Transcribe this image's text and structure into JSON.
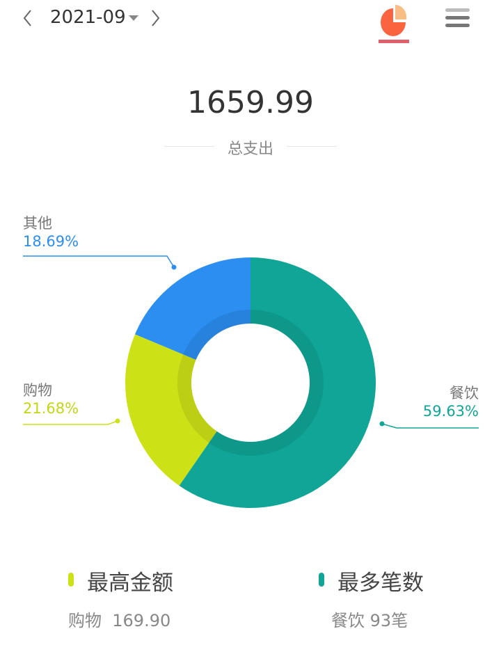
{
  "header": {
    "month": "2021-09",
    "prev_icon": "chevron-left-icon",
    "next_icon": "chevron-right-icon",
    "dropdown_icon": "caret-down-icon",
    "chart_tab_icon": "pie-chart-icon",
    "menu_icon": "hamburger-menu-icon",
    "accent": "#e0606a"
  },
  "summary": {
    "total": "1659.99",
    "label": "总支出"
  },
  "chart_data": {
    "type": "pie",
    "donut": true,
    "categories": [
      "餐饮",
      "购物",
      "其他"
    ],
    "values": [
      59.63,
      21.68,
      18.69
    ],
    "labels": [
      "59.63%",
      "21.68%",
      "18.69%"
    ],
    "colors": [
      "#10a596",
      "#cde117",
      "#2b8ef0"
    ]
  },
  "stats": {
    "highest": {
      "title": "最高金额",
      "category": "购物",
      "value": "169.90",
      "color": "#cde117"
    },
    "most": {
      "title": "最多笔数",
      "category": "餐饮",
      "value": "93笔",
      "color": "#10a596"
    }
  }
}
